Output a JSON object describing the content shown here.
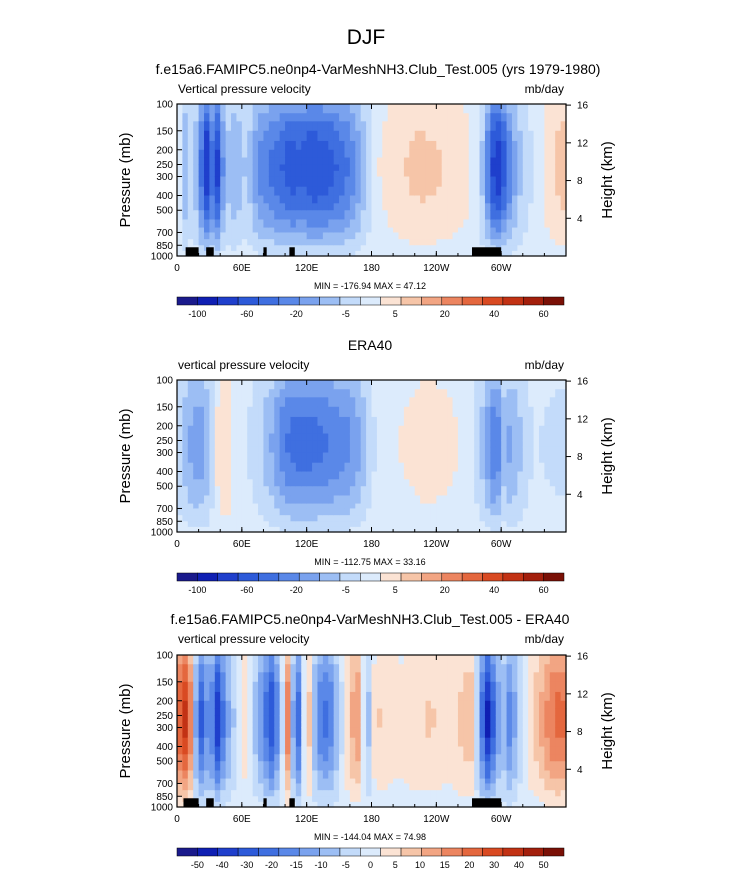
{
  "figure_title": "DJF",
  "colors": {
    "frame": "#000000",
    "land": "#000000",
    "palette": [
      "#1a1a8c",
      "#0f1fb3",
      "#1f3fcc",
      "#2d5ad9",
      "#3f6fe0",
      "#5a88e8",
      "#7aa2ee",
      "#9cbef4",
      "#c3dbfa",
      "#dcebfc",
      "#fbe3d4",
      "#f6c5a8",
      "#f2a583",
      "#ec8560",
      "#e4673e",
      "#d94a22",
      "#c23214",
      "#a31f0c",
      "#7a1006"
    ]
  },
  "chart_data": [
    {
      "type": "heatmap",
      "title": "f.e15a6.FAMIPC5.ne0np4-VarMeshNH3.Club_Test.005 (yrs 1979-1980)",
      "left_string": "Vertical pressure velocity",
      "units": "mb/day",
      "xlabel": "",
      "ylabel": "Pressure (mb)",
      "y2label": "Height (km)",
      "xticks": [
        "0",
        "60E",
        "120E",
        "180",
        "120W",
        "60W"
      ],
      "xtick_values": [
        0,
        60,
        120,
        180,
        240,
        300
      ],
      "xlim": [
        0,
        360
      ],
      "yticks": [
        "100",
        "150",
        "200",
        "250",
        "300",
        "400",
        "500",
        "700",
        "850",
        "1000"
      ],
      "ytick_values": [
        100,
        150,
        200,
        250,
        300,
        400,
        500,
        700,
        850,
        1000
      ],
      "ylim": [
        1000,
        100
      ],
      "yscale": "log",
      "y2ticks": [
        "4",
        "8",
        "12",
        "16"
      ],
      "y2tick_values": [
        4,
        8,
        12,
        16
      ],
      "stats": "MIN = -176.94   MAX =  47.12",
      "min": -176.94,
      "max": 47.12,
      "colorbar_labels": [
        "-100",
        "-60",
        "-20",
        "-5",
        "5",
        "20",
        "40",
        "60"
      ],
      "profile": [
        {
          "lon": 0,
          "v": 12
        },
        {
          "lon": 8,
          "v": -30
        },
        {
          "lon": 15,
          "v": -10
        },
        {
          "lon": 22,
          "v": -55
        },
        {
          "lon": 28,
          "v": -95
        },
        {
          "lon": 32,
          "v": -60
        },
        {
          "lon": 38,
          "v": -85
        },
        {
          "lon": 45,
          "v": -20
        },
        {
          "lon": 55,
          "v": -30
        },
        {
          "lon": 65,
          "v": -15
        },
        {
          "lon": 75,
          "v": -45
        },
        {
          "lon": 85,
          "v": -55
        },
        {
          "lon": 95,
          "v": -65
        },
        {
          "lon": 105,
          "v": -75
        },
        {
          "lon": 115,
          "v": -70
        },
        {
          "lon": 125,
          "v": -80
        },
        {
          "lon": 135,
          "v": -75
        },
        {
          "lon": 145,
          "v": -70
        },
        {
          "lon": 155,
          "v": -60
        },
        {
          "lon": 165,
          "v": -45
        },
        {
          "lon": 175,
          "v": -20
        },
        {
          "lon": 185,
          "v": 5
        },
        {
          "lon": 195,
          "v": 10
        },
        {
          "lon": 210,
          "v": 18
        },
        {
          "lon": 225,
          "v": 22
        },
        {
          "lon": 240,
          "v": 20
        },
        {
          "lon": 255,
          "v": 15
        },
        {
          "lon": 270,
          "v": 8
        },
        {
          "lon": 280,
          "v": -5
        },
        {
          "lon": 288,
          "v": -55
        },
        {
          "lon": 295,
          "v": -95
        },
        {
          "lon": 302,
          "v": -75
        },
        {
          "lon": 310,
          "v": -40
        },
        {
          "lon": 320,
          "v": -15
        },
        {
          "lon": 330,
          "v": -5
        },
        {
          "lon": 340,
          "v": 8
        },
        {
          "lon": 350,
          "v": 20
        },
        {
          "lon": 360,
          "v": 25
        }
      ],
      "land": [
        [
          8,
          20
        ],
        [
          27,
          34
        ],
        [
          80,
          83
        ],
        [
          104,
          109
        ],
        [
          273,
          300
        ]
      ]
    },
    {
      "type": "heatmap",
      "title": "ERA40",
      "left_string": "vertical pressure velocity",
      "units": "mb/day",
      "xlabel": "",
      "ylabel": "Pressure (mb)",
      "y2label": "Height (km)",
      "xticks": [
        "0",
        "60E",
        "120E",
        "180",
        "120W",
        "60W"
      ],
      "xtick_values": [
        0,
        60,
        120,
        180,
        240,
        300
      ],
      "xlim": [
        0,
        360
      ],
      "yticks": [
        "100",
        "150",
        "200",
        "250",
        "300",
        "400",
        "500",
        "700",
        "850",
        "1000"
      ],
      "ytick_values": [
        100,
        150,
        200,
        250,
        300,
        400,
        500,
        700,
        850,
        1000
      ],
      "ylim": [
        1000,
        100
      ],
      "yscale": "log",
      "y2ticks": [
        "4",
        "8",
        "12",
        "16"
      ],
      "y2tick_values": [
        4,
        8,
        12,
        16
      ],
      "stats": "MIN = -112.75   MAX =  33.16",
      "min": -112.75,
      "max": 33.16,
      "colorbar_labels": [
        "-100",
        "-60",
        "-20",
        "-5",
        "5",
        "20",
        "40",
        "60"
      ],
      "profile": [
        {
          "lon": 0,
          "v": -10
        },
        {
          "lon": 10,
          "v": -30
        },
        {
          "lon": 20,
          "v": -40
        },
        {
          "lon": 30,
          "v": -25
        },
        {
          "lon": 38,
          "v": 10
        },
        {
          "lon": 45,
          "v": 22
        },
        {
          "lon": 52,
          "v": 5
        },
        {
          "lon": 60,
          "v": -5
        },
        {
          "lon": 70,
          "v": -8
        },
        {
          "lon": 80,
          "v": -20
        },
        {
          "lon": 90,
          "v": -35
        },
        {
          "lon": 100,
          "v": -55
        },
        {
          "lon": 110,
          "v": -60
        },
        {
          "lon": 120,
          "v": -62
        },
        {
          "lon": 130,
          "v": -58
        },
        {
          "lon": 140,
          "v": -55
        },
        {
          "lon": 150,
          "v": -50
        },
        {
          "lon": 160,
          "v": -45
        },
        {
          "lon": 170,
          "v": -30
        },
        {
          "lon": 180,
          "v": -8
        },
        {
          "lon": 190,
          "v": -3
        },
        {
          "lon": 200,
          "v": 5
        },
        {
          "lon": 215,
          "v": 8
        },
        {
          "lon": 230,
          "v": 12
        },
        {
          "lon": 245,
          "v": 10
        },
        {
          "lon": 260,
          "v": 6
        },
        {
          "lon": 270,
          "v": 2
        },
        {
          "lon": 280,
          "v": -15
        },
        {
          "lon": 288,
          "v": -40
        },
        {
          "lon": 295,
          "v": -60
        },
        {
          "lon": 302,
          "v": -25
        },
        {
          "lon": 310,
          "v": -35
        },
        {
          "lon": 320,
          "v": -15
        },
        {
          "lon": 330,
          "v": -5
        },
        {
          "lon": 345,
          "v": -8
        },
        {
          "lon": 360,
          "v": -10
        }
      ],
      "land": []
    },
    {
      "type": "heatmap",
      "title": "f.e15a6.FAMIPC5.ne0np4-VarMeshNH3.Club_Test.005 - ERA40",
      "left_string": "vertical pressure velocity",
      "units": "mb/day",
      "xlabel": "",
      "ylabel": "Pressure (mb)",
      "y2label": "Height (km)",
      "xticks": [
        "0",
        "60E",
        "120E",
        "180",
        "120W",
        "60W"
      ],
      "xtick_values": [
        0,
        60,
        120,
        180,
        240,
        300
      ],
      "xlim": [
        0,
        360
      ],
      "yticks": [
        "100",
        "150",
        "200",
        "250",
        "300",
        "400",
        "500",
        "700",
        "850",
        "1000"
      ],
      "ytick_values": [
        100,
        150,
        200,
        250,
        300,
        400,
        500,
        700,
        850,
        1000
      ],
      "ylim": [
        1000,
        100
      ],
      "yscale": "log",
      "y2ticks": [
        "4",
        "8",
        "12",
        "16"
      ],
      "y2tick_values": [
        4,
        8,
        12,
        16
      ],
      "stats": "MIN = -144.04   MAX =  74.98",
      "min": -144.04,
      "max": 74.98,
      "colorbar_labels": [
        "-50",
        "-40",
        "-30",
        "-20",
        "-15",
        "-10",
        "-5",
        "0",
        "5",
        "10",
        "15",
        "20",
        "30",
        "40",
        "50"
      ],
      "profile": [
        {
          "lon": 0,
          "v": 25
        },
        {
          "lon": 6,
          "v": 45
        },
        {
          "lon": 12,
          "v": 30
        },
        {
          "lon": 18,
          "v": -20
        },
        {
          "lon": 24,
          "v": -40
        },
        {
          "lon": 30,
          "v": -10
        },
        {
          "lon": 36,
          "v": -50
        },
        {
          "lon": 42,
          "v": -30
        },
        {
          "lon": 48,
          "v": -15
        },
        {
          "lon": 56,
          "v": -5
        },
        {
          "lon": 64,
          "v": 8
        },
        {
          "lon": 72,
          "v": -10
        },
        {
          "lon": 80,
          "v": -25
        },
        {
          "lon": 88,
          "v": -40
        },
        {
          "lon": 96,
          "v": -15
        },
        {
          "lon": 102,
          "v": 30
        },
        {
          "lon": 108,
          "v": -20
        },
        {
          "lon": 114,
          "v": -35
        },
        {
          "lon": 120,
          "v": 25
        },
        {
          "lon": 126,
          "v": -10
        },
        {
          "lon": 132,
          "v": -25
        },
        {
          "lon": 140,
          "v": -30
        },
        {
          "lon": 150,
          "v": -10
        },
        {
          "lon": 160,
          "v": 15
        },
        {
          "lon": 168,
          "v": 20
        },
        {
          "lon": 176,
          "v": -15
        },
        {
          "lon": 184,
          "v": 10
        },
        {
          "lon": 194,
          "v": 8
        },
        {
          "lon": 206,
          "v": 5
        },
        {
          "lon": 220,
          "v": 8
        },
        {
          "lon": 235,
          "v": 10
        },
        {
          "lon": 250,
          "v": 6
        },
        {
          "lon": 262,
          "v": 10
        },
        {
          "lon": 272,
          "v": 15
        },
        {
          "lon": 280,
          "v": -20
        },
        {
          "lon": 288,
          "v": -50
        },
        {
          "lon": 294,
          "v": -30
        },
        {
          "lon": 300,
          "v": -10
        },
        {
          "lon": 308,
          "v": -25
        },
        {
          "lon": 316,
          "v": -10
        },
        {
          "lon": 324,
          "v": 5
        },
        {
          "lon": 332,
          "v": 12
        },
        {
          "lon": 340,
          "v": 20
        },
        {
          "lon": 350,
          "v": 30
        },
        {
          "lon": 360,
          "v": 28
        }
      ],
      "land": [
        [
          6,
          20
        ],
        [
          27,
          34
        ],
        [
          80,
          83
        ],
        [
          104,
          109
        ],
        [
          273,
          300
        ]
      ]
    }
  ]
}
